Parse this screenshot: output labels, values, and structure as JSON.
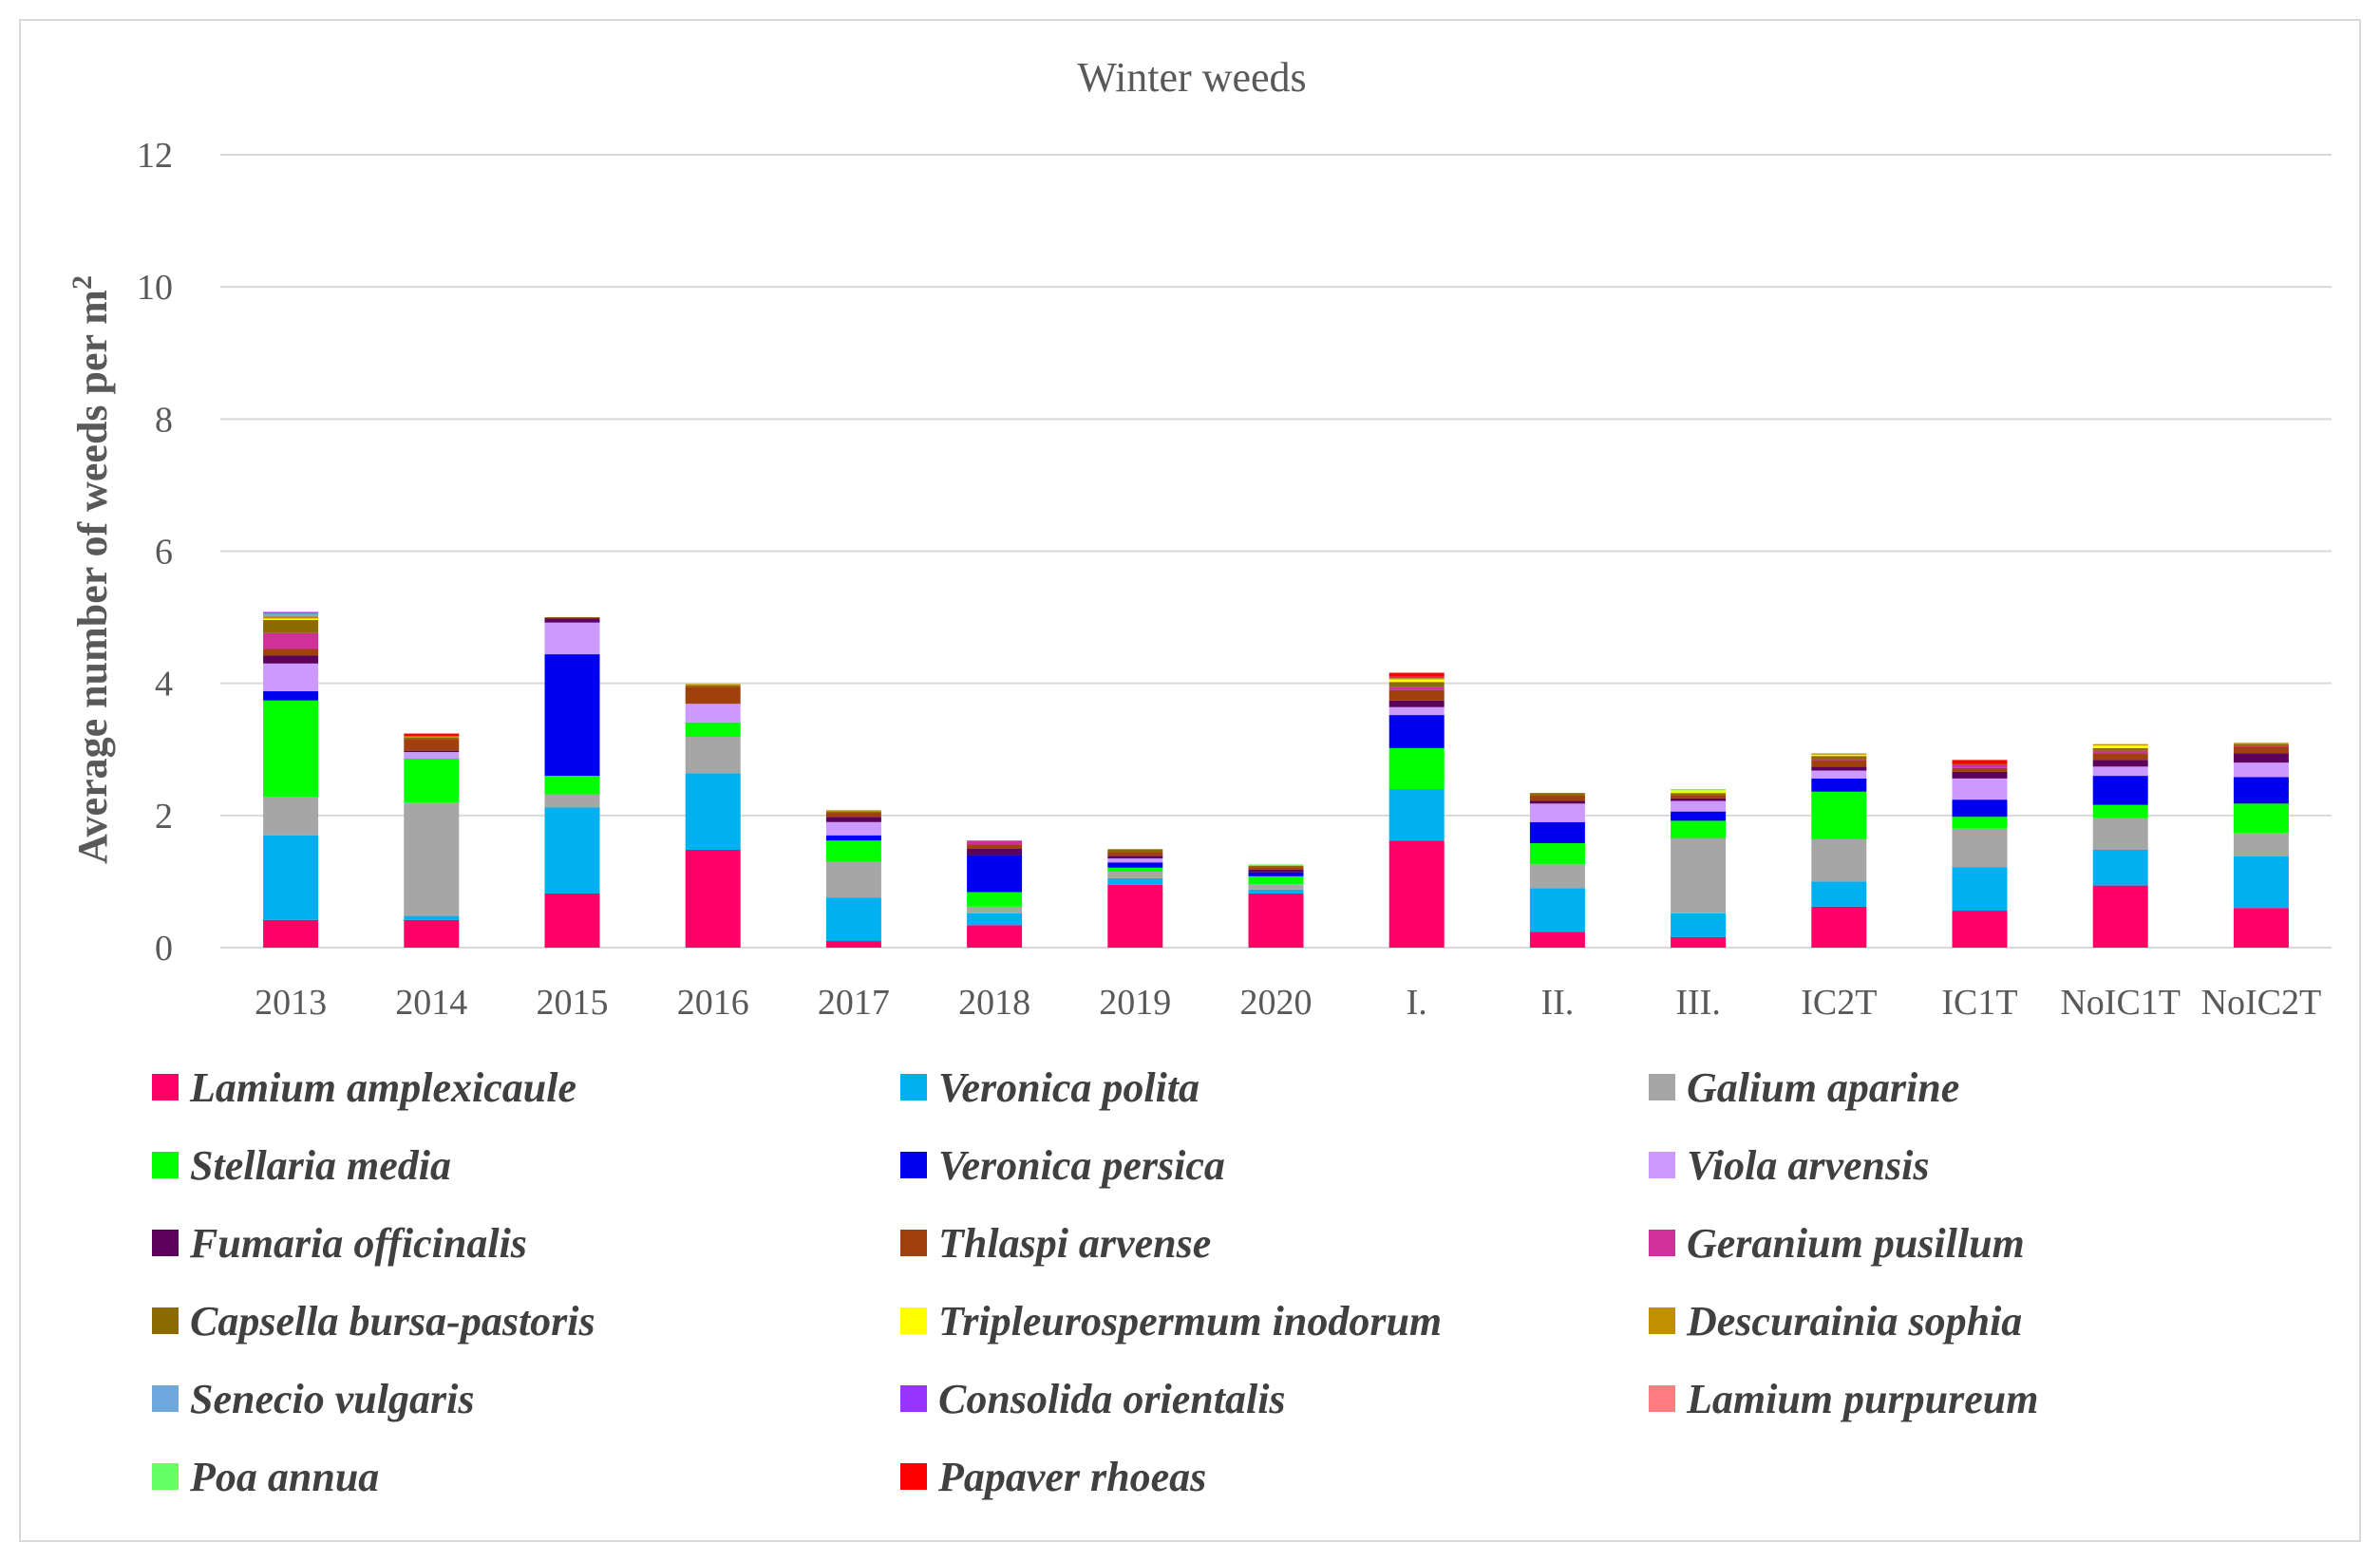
{
  "chart_data": {
    "type": "bar",
    "stacked": true,
    "title": "Winter weeds",
    "xlabel": "",
    "ylabel": "Average number of weeds per m",
    "ylabel_superscript": "2",
    "ylim": [
      0,
      12
    ],
    "yticks": [
      0,
      2,
      4,
      6,
      8,
      10,
      12
    ],
    "grid": true,
    "legend_position": "bottom",
    "categories": [
      "2013",
      "2014",
      "2015",
      "2016",
      "2017",
      "2018",
      "2019",
      "2020",
      "I.",
      "II.",
      "III.",
      "IC2T",
      "IC1T",
      "NoIC1T",
      "NoIC2T"
    ],
    "series": [
      {
        "name": "Lamium amplexicaule",
        "color": "#FF0066",
        "values": [
          0.42,
          0.42,
          0.82,
          1.48,
          0.1,
          0.34,
          0.95,
          0.82,
          1.62,
          0.24,
          0.16,
          0.62,
          0.56,
          0.94,
          0.6
        ]
      },
      {
        "name": "Veronica polita",
        "color": "#00B0F0",
        "values": [
          1.28,
          0.06,
          1.3,
          1.16,
          0.66,
          0.18,
          0.1,
          0.06,
          0.78,
          0.66,
          0.36,
          0.38,
          0.66,
          0.54,
          0.78
        ]
      },
      {
        "name": "Galium aparine",
        "color": "#A6A6A6",
        "values": [
          0.58,
          1.72,
          0.2,
          0.55,
          0.54,
          0.1,
          0.1,
          0.08,
          0.0,
          0.36,
          1.14,
          0.64,
          0.58,
          0.48,
          0.36
        ]
      },
      {
        "name": "Stellaria media",
        "color": "#00FF00",
        "values": [
          1.46,
          0.66,
          0.28,
          0.22,
          0.32,
          0.22,
          0.06,
          0.12,
          0.62,
          0.32,
          0.26,
          0.72,
          0.18,
          0.2,
          0.44
        ]
      },
      {
        "name": "Veronica persica",
        "color": "#0000EE",
        "values": [
          0.14,
          0.0,
          1.84,
          0.0,
          0.08,
          0.56,
          0.08,
          0.06,
          0.5,
          0.32,
          0.14,
          0.2,
          0.26,
          0.44,
          0.4
        ]
      },
      {
        "name": "Viola arvensis",
        "color": "#CC99FF",
        "values": [
          0.42,
          0.1,
          0.48,
          0.28,
          0.2,
          0.0,
          0.06,
          0.0,
          0.12,
          0.28,
          0.16,
          0.12,
          0.32,
          0.14,
          0.22
        ]
      },
      {
        "name": "Fumaria officinalis",
        "color": "#5C005C",
        "values": [
          0.12,
          0.02,
          0.06,
          0.0,
          0.08,
          0.1,
          0.04,
          0.04,
          0.1,
          0.04,
          0.04,
          0.06,
          0.1,
          0.1,
          0.14
        ]
      },
      {
        "name": "Thlaspi arvense",
        "color": "#A0400C",
        "values": [
          0.1,
          0.18,
          0.02,
          0.26,
          0.06,
          0.06,
          0.06,
          0.04,
          0.16,
          0.08,
          0.04,
          0.1,
          0.06,
          0.1,
          0.1
        ]
      },
      {
        "name": "Geranium pusillum",
        "color": "#D0309A",
        "values": [
          0.24,
          0.0,
          0.0,
          0.0,
          0.0,
          0.06,
          0.0,
          0.0,
          0.04,
          0.0,
          0.0,
          0.02,
          0.04,
          0.04,
          0.02
        ]
      },
      {
        "name": "Capsella bursa-pastoris",
        "color": "#8B6A00",
        "values": [
          0.2,
          0.02,
          0.0,
          0.02,
          0.02,
          0.0,
          0.04,
          0.02,
          0.08,
          0.04,
          0.04,
          0.04,
          0.02,
          0.04,
          0.02
        ]
      },
      {
        "name": "Tripleurospermum inodorum",
        "color": "#FFFF00",
        "values": [
          0.02,
          0.0,
          0.0,
          0.0,
          0.0,
          0.0,
          0.0,
          0.0,
          0.04,
          0.0,
          0.04,
          0.02,
          0.0,
          0.04,
          0.0
        ]
      },
      {
        "name": "Descurainia sophia",
        "color": "#C09000",
        "values": [
          0.04,
          0.02,
          0.0,
          0.02,
          0.02,
          0.0,
          0.0,
          0.0,
          0.02,
          0.0,
          0.0,
          0.02,
          0.0,
          0.02,
          0.02
        ]
      },
      {
        "name": "Senecio vulgaris",
        "color": "#6FA8DC",
        "values": [
          0.04,
          0.0,
          0.0,
          0.0,
          0.0,
          0.0,
          0.0,
          0.0,
          0.0,
          0.0,
          0.0,
          0.0,
          0.0,
          0.0,
          0.0
        ]
      },
      {
        "name": "Consolida orientalis",
        "color": "#9933FF",
        "values": [
          0.02,
          0.0,
          0.0,
          0.0,
          0.0,
          0.0,
          0.0,
          0.0,
          0.02,
          0.0,
          0.0,
          0.0,
          0.0,
          0.0,
          0.0
        ]
      },
      {
        "name": "Lamium purpureum",
        "color": "#FF7C80",
        "values": [
          0.0,
          0.0,
          0.0,
          0.0,
          0.0,
          0.0,
          0.0,
          0.0,
          0.0,
          0.0,
          0.0,
          0.0,
          0.0,
          0.0,
          0.0
        ]
      },
      {
        "name": "Poa annua",
        "color": "#66FF66",
        "values": [
          0.0,
          0.0,
          0.0,
          0.0,
          0.0,
          0.0,
          0.0,
          0.02,
          0.0,
          0.0,
          0.02,
          0.0,
          0.0,
          0.0,
          0.0
        ]
      },
      {
        "name": "Papaver rhoeas",
        "color": "#FF0000",
        "values": [
          0.0,
          0.04,
          0.0,
          0.0,
          0.0,
          0.0,
          0.0,
          0.0,
          0.06,
          0.0,
          0.0,
          0.0,
          0.06,
          0.0,
          0.0
        ]
      }
    ]
  }
}
